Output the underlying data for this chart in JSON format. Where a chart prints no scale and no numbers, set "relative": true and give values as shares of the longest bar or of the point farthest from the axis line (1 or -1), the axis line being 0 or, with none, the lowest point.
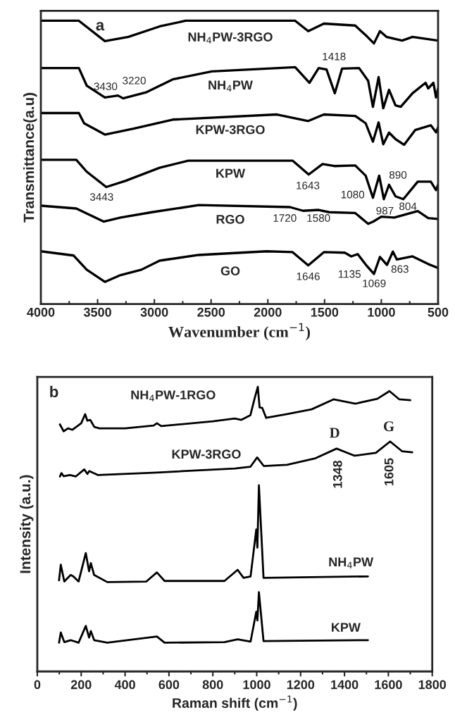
{
  "chart_data": [
    {
      "type": "line",
      "xlabel": "Wavenumber (cm$^{−1}$)",
      "ylabel": "Transmittance(a.u)",
      "xlim": [
        4000,
        500
      ],
      "xticks": [
        4000,
        3500,
        3000,
        2500,
        2000,
        1500,
        1000,
        500
      ],
      "relative": true,
      "tick_labels": "x",
      "series": [
        {
          "name": "NH$_{4}$PW-3RGO",
          "color": "#000000",
          "x": [
            4000,
            3665,
            3436,
            3229,
            2953,
            2724,
            1759,
            1644,
            1506,
            1230,
            1127,
            1065,
            1012,
            955,
            817,
            725,
            500
          ],
          "values": [
            1.0,
            1.0,
            0.928,
            0.943,
            0.98,
            1.0,
            1.0,
            0.963,
            0.99,
            0.983,
            0.945,
            0.92,
            0.963,
            0.943,
            0.93,
            0.943,
            0.93
          ]
        },
        {
          "name": "NH$_{4}$PW",
          "color": "#000000",
          "x": [
            4000,
            3665,
            3596,
            3436,
            3321,
            3275,
            3068,
            2838,
            2494,
            1759,
            1633,
            1552,
            1483,
            1410,
            1346,
            1196,
            1116,
            1074,
            1024,
            983,
            932,
            875,
            829,
            725,
            610,
            587,
            541,
            518,
            500
          ],
          "values": [
            0.833,
            0.833,
            0.771,
            0.729,
            0.736,
            0.726,
            0.748,
            0.793,
            0.821,
            0.836,
            0.781,
            0.833,
            0.828,
            0.744,
            0.831,
            0.833,
            0.788,
            0.696,
            0.801,
            0.691,
            0.756,
            0.701,
            0.696,
            0.744,
            0.781,
            0.761,
            0.781,
            0.729,
            0.761
          ]
        },
        {
          "name": "KPW-3RGO",
          "color": "#000000",
          "x": [
            4000,
            3665,
            3619,
            3436,
            3183,
            2838,
            1920,
            1644,
            1506,
            1230,
            1138,
            1074,
            1024,
            983,
            932,
            875,
            799,
            702,
            564,
            518,
            500
          ],
          "values": [
            0.674,
            0.674,
            0.638,
            0.598,
            0.619,
            0.651,
            0.669,
            0.646,
            0.669,
            0.664,
            0.638,
            0.573,
            0.641,
            0.564,
            0.605,
            0.582,
            0.562,
            0.614,
            0.631,
            0.606,
            0.624
          ]
        },
        {
          "name": "KPW",
          "color": "#000000",
          "x": [
            4000,
            3688,
            3596,
            3424,
            3252,
            2953,
            2701,
            1782,
            1640,
            1518,
            1414,
            1230,
            1138,
            1074,
            1019,
            978,
            932,
            875,
            806,
            679,
            564,
            518,
            500
          ],
          "values": [
            0.509,
            0.509,
            0.467,
            0.413,
            0.435,
            0.481,
            0.506,
            0.506,
            0.457,
            0.494,
            0.487,
            0.489,
            0.453,
            0.375,
            0.453,
            0.37,
            0.421,
            0.38,
            0.37,
            0.432,
            0.432,
            0.402,
            0.421
          ]
        },
        {
          "name": "RGO",
          "color": "#000000",
          "x": [
            4000,
            3688,
            3447,
            3298,
            3022,
            2609,
            1805,
            1690,
            1552,
            1460,
            1230,
            1116,
            1070,
            1001,
            886,
            679,
            587,
            500
          ],
          "values": [
            0.347,
            0.337,
            0.291,
            0.305,
            0.324,
            0.349,
            0.342,
            0.329,
            0.332,
            0.324,
            0.321,
            0.283,
            0.291,
            0.308,
            0.305,
            0.328,
            0.303,
            0.3
          ]
        },
        {
          "name": "GO",
          "color": "#000000",
          "x": [
            4000,
            3711,
            3596,
            3436,
            3298,
            3114,
            2953,
            2609,
            2011,
            1782,
            1644,
            1506,
            1322,
            1265,
            1208,
            1127,
            1065,
            1012,
            950,
            898,
            863,
            725,
            587,
            500
          ],
          "values": [
            0.186,
            0.171,
            0.121,
            0.078,
            0.102,
            0.121,
            0.153,
            0.173,
            0.186,
            0.183,
            0.136,
            0.183,
            0.181,
            0.168,
            0.176,
            0.134,
            0.106,
            0.166,
            0.138,
            0.185,
            0.157,
            0.168,
            0.141,
            0.127
          ]
        }
      ],
      "annotations": [
        "a",
        "1418",
        "3430",
        "3220",
        "3443",
        "1643",
        "1080",
        "890",
        "987",
        "804",
        "1720",
        "1580",
        "1646",
        "1135",
        "1069",
        "863"
      ]
    },
    {
      "type": "line",
      "xlabel": "Raman shift (cm$^{−1}$)",
      "ylabel": "Intensity (a.u.)",
      "xlim": [
        0,
        1800
      ],
      "xticks": [
        0,
        200,
        400,
        600,
        800,
        1000,
        1200,
        1400,
        1600,
        1800
      ],
      "relative": true,
      "tick_labels": "x",
      "series": [
        {
          "name": "NH$_{4}$PW-1RGO",
          "color": "#000000",
          "x": [
            103,
            120,
            140,
            160,
            200,
            218,
            228,
            241,
            260,
            283,
            400,
            530,
            545,
            565,
            800,
            900,
            930,
            971,
            990,
            1005,
            1013,
            1025,
            1043,
            1138,
            1250,
            1350,
            1450,
            1550,
            1605,
            1650,
            1700
          ],
          "values": [
            0.868,
            0.844,
            0.854,
            0.849,
            0.872,
            0.904,
            0.881,
            0.884,
            0.859,
            0.854,
            0.854,
            0.864,
            0.872,
            0.862,
            0.879,
            0.889,
            0.884,
            0.9,
            0.958,
            1.0,
            0.928,
            0.926,
            0.891,
            0.904,
            0.921,
            0.956,
            0.941,
            0.958,
            0.985,
            0.956,
            0.953
          ]
        },
        {
          "name": "KPW-3RGO",
          "color": "#000000",
          "x": [
            103,
            110,
            120,
            148,
            175,
            214,
            228,
            237,
            277,
            545,
            900,
            971,
            1002,
            1032,
            1138,
            1268,
            1364,
            1446,
            1543,
            1608,
            1662,
            1709
          ],
          "values": [
            0.685,
            0.697,
            0.686,
            0.69,
            0.685,
            0.71,
            0.694,
            0.704,
            0.69,
            0.699,
            0.713,
            0.719,
            0.752,
            0.722,
            0.726,
            0.749,
            0.783,
            0.758,
            0.768,
            0.808,
            0.774,
            0.77
          ]
        },
        {
          "name": "NH$_{4}$PW",
          "color": "#000000",
          "x": [
            99,
            107,
            123,
            152,
            164,
            188,
            221,
            236,
            244,
            259,
            319,
            497,
            545,
            580,
            853,
            913,
            940,
            972,
            998,
            1003,
            1010,
            1031,
            1507
          ],
          "values": [
            0.32,
            0.375,
            0.316,
            0.339,
            0.334,
            0.316,
            0.416,
            0.352,
            0.381,
            0.339,
            0.314,
            0.316,
            0.348,
            0.318,
            0.318,
            0.357,
            0.329,
            0.334,
            0.499,
            0.435,
            0.654,
            0.329,
            0.334
          ]
        },
        {
          "name": "KPW",
          "color": "#000000",
          "x": [
            99,
            107,
            123,
            152,
            188,
            221,
            236,
            244,
            259,
            319,
            545,
            580,
            853,
            913,
            972,
            998,
            1003,
            1010,
            1031,
            1507
          ],
          "values": [
            0.101,
            0.137,
            0.103,
            0.11,
            0.101,
            0.16,
            0.119,
            0.142,
            0.11,
            0.101,
            0.123,
            0.101,
            0.103,
            0.113,
            0.105,
            0.21,
            0.179,
            0.279,
            0.107,
            0.11
          ]
        }
      ],
      "annotations": [
        "b",
        "D",
        "G",
        "1348",
        "1605"
      ]
    }
  ]
}
